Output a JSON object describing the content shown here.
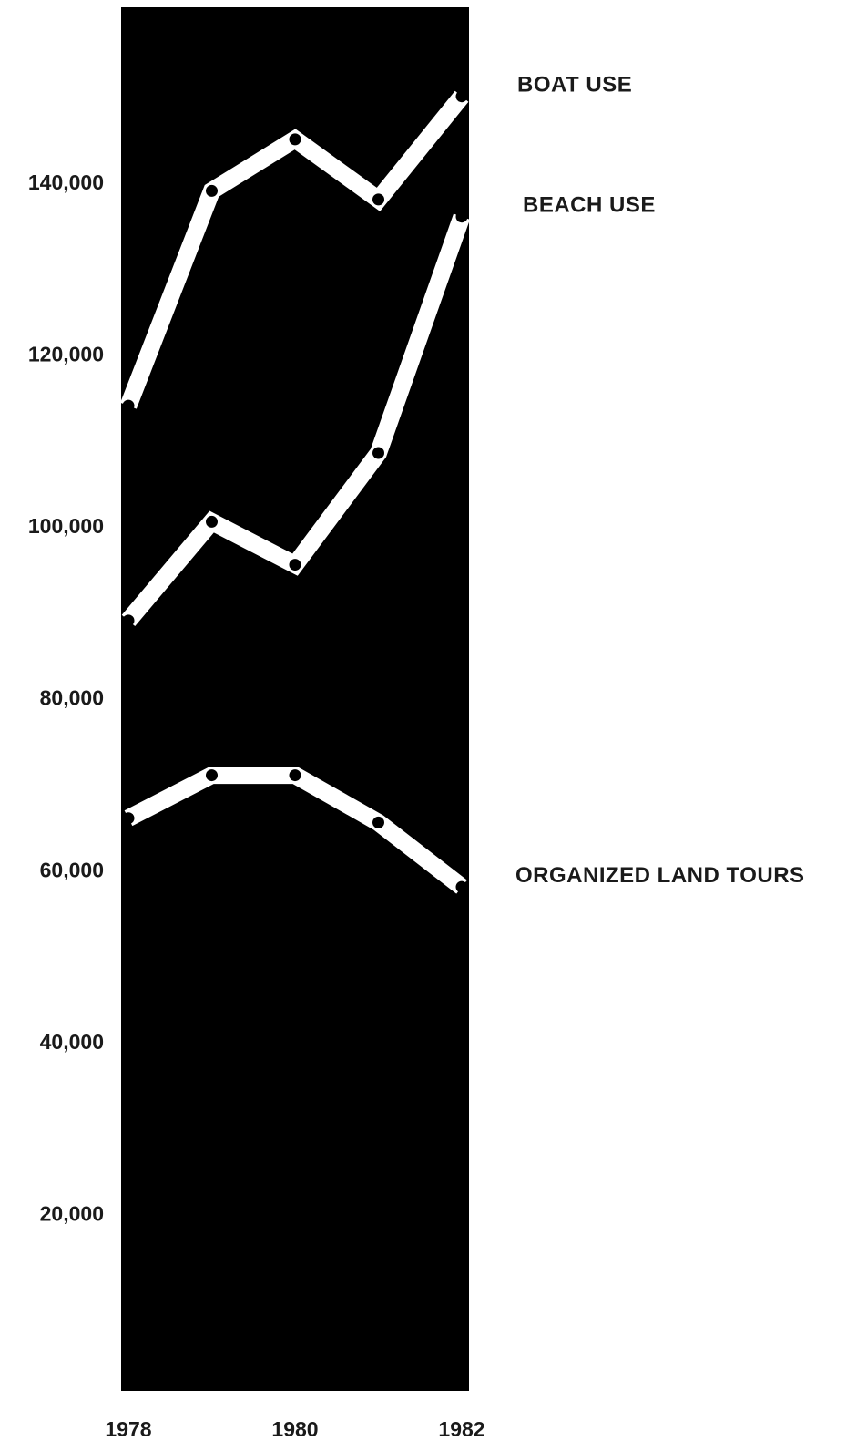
{
  "chart_data": {
    "type": "line",
    "title": "",
    "xlabel": "",
    "ylabel": "",
    "x": [
      1978,
      1979,
      1980,
      1981,
      1982
    ],
    "x_ticks": [
      "1978",
      "1980",
      "1982"
    ],
    "y_ticks": [
      "20,000",
      "40,000",
      "60,000",
      "80,000",
      "100,000",
      "120,000",
      "140,000"
    ],
    "ylim": [
      0,
      160000
    ],
    "grid": false,
    "background": "#000000",
    "line_color": "#ffffff",
    "marker_color": "#000000",
    "series": [
      {
        "name": "BOAT USE",
        "values": [
          114000,
          139000,
          145000,
          138000,
          150000
        ]
      },
      {
        "name": "BEACH USE",
        "values": [
          89000,
          100500,
          95500,
          108500,
          136000
        ]
      },
      {
        "name": "ORGANIZED LAND TOURS",
        "values": [
          66000,
          71000,
          71000,
          65500,
          58000
        ]
      }
    ]
  }
}
